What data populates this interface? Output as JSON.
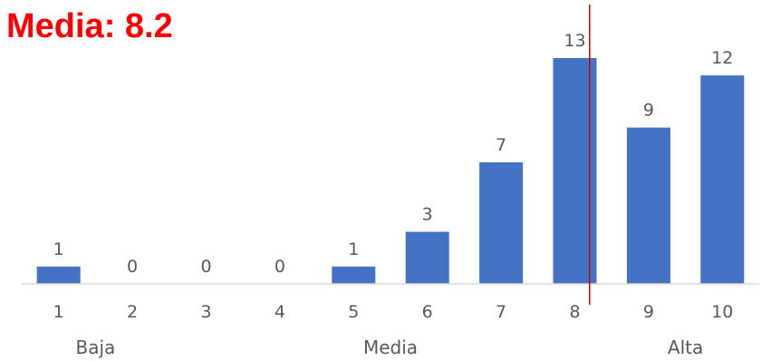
{
  "chart_data": {
    "type": "bar",
    "title": "Media: 8.2",
    "mean": 8.2,
    "categories": [
      "1",
      "2",
      "3",
      "4",
      "5",
      "6",
      "7",
      "8",
      "9",
      "10"
    ],
    "values": [
      1,
      0,
      0,
      0,
      1,
      3,
      7,
      13,
      9,
      12
    ],
    "data_labels": true,
    "group_labels": [
      "Baja",
      "Media",
      "Alta"
    ],
    "ylim": [
      0,
      13
    ],
    "grid": false,
    "legend": "none",
    "colors": {
      "bar": "#4472C4",
      "mean_line": "#CC0000",
      "title": "#FF0000",
      "axis": "#D9D9D9",
      "text": "#595959"
    }
  }
}
